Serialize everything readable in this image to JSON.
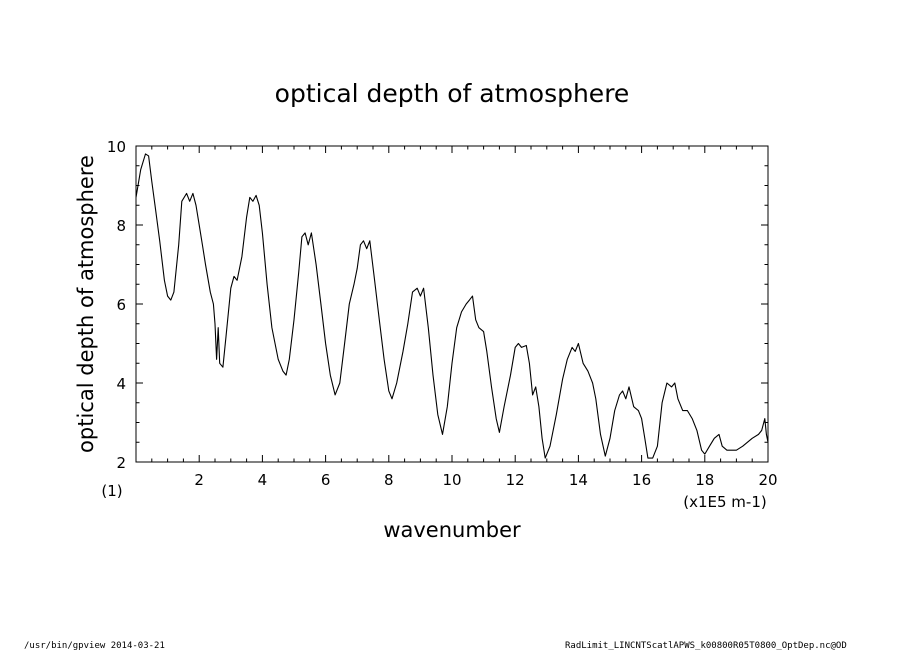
{
  "chart_data": {
    "type": "line",
    "title": "optical depth of atmosphere",
    "xlabel": "wavenumber",
    "ylabel": "optical depth of atmosphere",
    "x_unit": "(x1E5 m-1)",
    "y_unit": "(1)",
    "xlim": [
      0,
      20
    ],
    "ylim": [
      2,
      10
    ],
    "xticks": [
      "2",
      "4",
      "6",
      "8",
      "10",
      "12",
      "14",
      "16",
      "18",
      "20"
    ],
    "yticks": [
      "2",
      "4",
      "6",
      "8",
      "10"
    ],
    "grid": false,
    "series": [
      {
        "points": [
          [
            0.0,
            8.7
          ],
          [
            0.15,
            9.4
          ],
          [
            0.3,
            9.8
          ],
          [
            0.4,
            9.75
          ],
          [
            0.5,
            9.1
          ],
          [
            0.6,
            8.5
          ],
          [
            0.75,
            7.6
          ],
          [
            0.9,
            6.6
          ],
          [
            1.0,
            6.2
          ],
          [
            1.1,
            6.1
          ],
          [
            1.2,
            6.3
          ],
          [
            1.35,
            7.5
          ],
          [
            1.45,
            8.6
          ],
          [
            1.6,
            8.8
          ],
          [
            1.7,
            8.6
          ],
          [
            1.8,
            8.8
          ],
          [
            1.9,
            8.5
          ],
          [
            2.0,
            8.0
          ],
          [
            2.1,
            7.5
          ],
          [
            2.2,
            7.0
          ],
          [
            2.35,
            6.3
          ],
          [
            2.45,
            6.0
          ],
          [
            2.5,
            5.5
          ],
          [
            2.55,
            4.6
          ],
          [
            2.6,
            5.4
          ],
          [
            2.65,
            4.5
          ],
          [
            2.75,
            4.4
          ],
          [
            2.85,
            5.2
          ],
          [
            3.0,
            6.4
          ],
          [
            3.1,
            6.7
          ],
          [
            3.2,
            6.6
          ],
          [
            3.35,
            7.2
          ],
          [
            3.5,
            8.2
          ],
          [
            3.6,
            8.7
          ],
          [
            3.7,
            8.6
          ],
          [
            3.8,
            8.75
          ],
          [
            3.9,
            8.5
          ],
          [
            4.0,
            7.8
          ],
          [
            4.15,
            6.5
          ],
          [
            4.3,
            5.4
          ],
          [
            4.5,
            4.6
          ],
          [
            4.65,
            4.3
          ],
          [
            4.75,
            4.2
          ],
          [
            4.85,
            4.6
          ],
          [
            5.0,
            5.6
          ],
          [
            5.15,
            6.8
          ],
          [
            5.25,
            7.7
          ],
          [
            5.35,
            7.8
          ],
          [
            5.45,
            7.5
          ],
          [
            5.55,
            7.8
          ],
          [
            5.7,
            7.0
          ],
          [
            5.85,
            6.0
          ],
          [
            6.0,
            5.0
          ],
          [
            6.15,
            4.2
          ],
          [
            6.3,
            3.7
          ],
          [
            6.45,
            4.0
          ],
          [
            6.6,
            5.0
          ],
          [
            6.75,
            6.0
          ],
          [
            6.9,
            6.5
          ],
          [
            7.0,
            6.9
          ],
          [
            7.1,
            7.5
          ],
          [
            7.2,
            7.6
          ],
          [
            7.3,
            7.4
          ],
          [
            7.4,
            7.6
          ],
          [
            7.55,
            6.6
          ],
          [
            7.7,
            5.6
          ],
          [
            7.85,
            4.6
          ],
          [
            8.0,
            3.8
          ],
          [
            8.1,
            3.6
          ],
          [
            8.25,
            4.0
          ],
          [
            8.45,
            4.8
          ],
          [
            8.6,
            5.5
          ],
          [
            8.75,
            6.3
          ],
          [
            8.9,
            6.4
          ],
          [
            9.0,
            6.2
          ],
          [
            9.1,
            6.4
          ],
          [
            9.25,
            5.4
          ],
          [
            9.4,
            4.2
          ],
          [
            9.55,
            3.2
          ],
          [
            9.7,
            2.7
          ],
          [
            9.85,
            3.4
          ],
          [
            10.0,
            4.5
          ],
          [
            10.15,
            5.4
          ],
          [
            10.3,
            5.8
          ],
          [
            10.45,
            6.0
          ],
          [
            10.55,
            6.1
          ],
          [
            10.65,
            6.2
          ],
          [
            10.75,
            5.6
          ],
          [
            10.85,
            5.4
          ],
          [
            11.0,
            5.3
          ],
          [
            11.1,
            4.8
          ],
          [
            11.25,
            3.9
          ],
          [
            11.4,
            3.1
          ],
          [
            11.5,
            2.75
          ],
          [
            11.65,
            3.4
          ],
          [
            11.85,
            4.2
          ],
          [
            12.0,
            4.9
          ],
          [
            12.1,
            5.0
          ],
          [
            12.2,
            4.9
          ],
          [
            12.35,
            4.95
          ],
          [
            12.45,
            4.5
          ],
          [
            12.55,
            3.7
          ],
          [
            12.65,
            3.9
          ],
          [
            12.75,
            3.4
          ],
          [
            12.85,
            2.6
          ],
          [
            12.95,
            2.1
          ],
          [
            13.1,
            2.4
          ],
          [
            13.3,
            3.2
          ],
          [
            13.5,
            4.1
          ],
          [
            13.65,
            4.6
          ],
          [
            13.8,
            4.9
          ],
          [
            13.9,
            4.8
          ],
          [
            14.0,
            5.0
          ],
          [
            14.15,
            4.5
          ],
          [
            14.3,
            4.3
          ],
          [
            14.45,
            4.0
          ],
          [
            14.55,
            3.6
          ],
          [
            14.7,
            2.7
          ],
          [
            14.85,
            2.15
          ],
          [
            15.0,
            2.6
          ],
          [
            15.15,
            3.3
          ],
          [
            15.3,
            3.7
          ],
          [
            15.4,
            3.8
          ],
          [
            15.5,
            3.6
          ],
          [
            15.6,
            3.9
          ],
          [
            15.75,
            3.4
          ],
          [
            15.9,
            3.3
          ],
          [
            16.0,
            3.1
          ],
          [
            16.1,
            2.6
          ],
          [
            16.2,
            2.1
          ],
          [
            16.35,
            2.1
          ],
          [
            16.5,
            2.4
          ],
          [
            16.65,
            3.5
          ],
          [
            16.8,
            4.0
          ],
          [
            16.95,
            3.9
          ],
          [
            17.05,
            4.0
          ],
          [
            17.15,
            3.6
          ],
          [
            17.3,
            3.3
          ],
          [
            17.45,
            3.3
          ],
          [
            17.6,
            3.1
          ],
          [
            17.75,
            2.8
          ],
          [
            17.9,
            2.3
          ],
          [
            18.0,
            2.2
          ],
          [
            18.15,
            2.4
          ],
          [
            18.3,
            2.6
          ],
          [
            18.45,
            2.7
          ],
          [
            18.55,
            2.4
          ],
          [
            18.7,
            2.3
          ],
          [
            19.0,
            2.3
          ],
          [
            19.2,
            2.4
          ],
          [
            19.5,
            2.6
          ],
          [
            19.7,
            2.7
          ],
          [
            19.8,
            2.8
          ],
          [
            19.9,
            3.1
          ],
          [
            19.95,
            2.7
          ],
          [
            20.0,
            2.5
          ]
        ]
      }
    ]
  },
  "footer": {
    "left": "/usr/bin/gpview  2014-03-21",
    "right": "RadLimit_LINCNTScatlAPWS_k00800R05T0800_OptDep.nc@OD"
  }
}
